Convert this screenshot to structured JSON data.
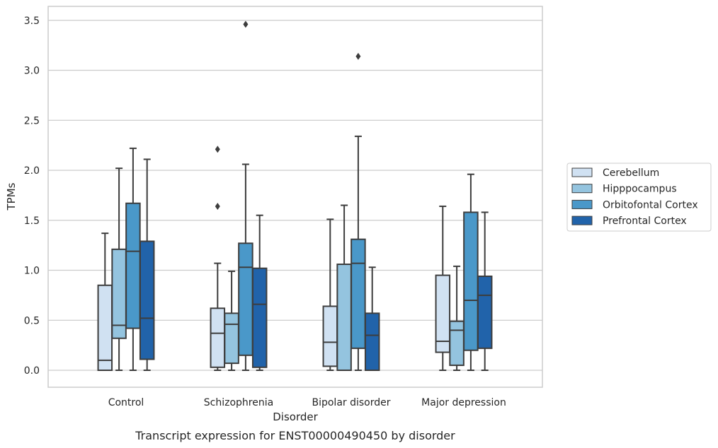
{
  "chart_data": {
    "type": "box",
    "caption": "Transcript expression for ENST00000490450 by disorder",
    "xlabel": "Disorder",
    "ylabel": "TPMs",
    "ylim": [
      -0.17,
      3.65
    ],
    "yticks": [
      "0.0",
      "0.5",
      "1.0",
      "1.5",
      "2.0",
      "2.5",
      "3.0",
      "3.5"
    ],
    "grid": "horizontal",
    "legend_position": "right",
    "categories": [
      "Control",
      "Schizophrenia",
      "Bipolar disorder",
      "Major depression"
    ],
    "series": [
      {
        "name": "Cerebellum",
        "color": "#d0e1f2",
        "boxes": [
          {
            "category": "Control",
            "whisker_low": 0.0,
            "q1": 0.0,
            "median": 0.1,
            "q3": 0.85,
            "whisker_high": 1.37,
            "outliers": []
          },
          {
            "category": "Schizophrenia",
            "whisker_low": 0.0,
            "q1": 0.03,
            "median": 0.37,
            "q3": 0.62,
            "whisker_high": 1.07,
            "outliers": [
              1.64,
              2.21
            ]
          },
          {
            "category": "Bipolar disorder",
            "whisker_low": 0.0,
            "q1": 0.04,
            "median": 0.28,
            "q3": 0.64,
            "whisker_high": 1.51,
            "outliers": []
          },
          {
            "category": "Major depression",
            "whisker_low": 0.0,
            "q1": 0.18,
            "median": 0.29,
            "q3": 0.95,
            "whisker_high": 1.64,
            "outliers": []
          }
        ]
      },
      {
        "name": "Hipppocampus",
        "color": "#94c4df",
        "boxes": [
          {
            "category": "Control",
            "whisker_low": 0.0,
            "q1": 0.32,
            "median": 0.45,
            "q3": 1.21,
            "whisker_high": 2.02,
            "outliers": []
          },
          {
            "category": "Schizophrenia",
            "whisker_low": 0.0,
            "q1": 0.07,
            "median": 0.46,
            "q3": 0.57,
            "whisker_high": 0.99,
            "outliers": []
          },
          {
            "category": "Bipolar disorder",
            "whisker_low": 0.0,
            "q1": 0.0,
            "median": 0.0,
            "q3": 1.06,
            "whisker_high": 1.65,
            "outliers": []
          },
          {
            "category": "Major depression",
            "whisker_low": 0.0,
            "q1": 0.05,
            "median": 0.4,
            "q3": 0.49,
            "whisker_high": 1.04,
            "outliers": []
          }
        ]
      },
      {
        "name": "Orbitofontal Cortex",
        "color": "#4a98c9",
        "boxes": [
          {
            "category": "Control",
            "whisker_low": 0.0,
            "q1": 0.42,
            "median": 1.19,
            "q3": 1.67,
            "whisker_high": 2.22,
            "outliers": []
          },
          {
            "category": "Schizophrenia",
            "whisker_low": 0.0,
            "q1": 0.15,
            "median": 1.03,
            "q3": 1.27,
            "whisker_high": 2.06,
            "outliers": [
              3.46
            ]
          },
          {
            "category": "Bipolar disorder",
            "whisker_low": 0.0,
            "q1": 0.22,
            "median": 1.07,
            "q3": 1.31,
            "whisker_high": 2.34,
            "outliers": [
              3.14
            ]
          },
          {
            "category": "Major depression",
            "whisker_low": 0.0,
            "q1": 0.2,
            "median": 0.7,
            "q3": 1.58,
            "whisker_high": 1.96,
            "outliers": []
          }
        ]
      },
      {
        "name": "Prefrontal Cortex",
        "color": "#2163aa",
        "boxes": [
          {
            "category": "Control",
            "whisker_low": 0.0,
            "q1": 0.11,
            "median": 0.52,
            "q3": 1.29,
            "whisker_high": 2.11,
            "outliers": []
          },
          {
            "category": "Schizophrenia",
            "whisker_low": 0.0,
            "q1": 0.03,
            "median": 0.66,
            "q3": 1.02,
            "whisker_high": 1.55,
            "outliers": []
          },
          {
            "category": "Bipolar disorder",
            "whisker_low": 0.0,
            "q1": 0.0,
            "median": 0.35,
            "q3": 0.57,
            "whisker_high": 1.03,
            "outliers": []
          },
          {
            "category": "Major depression",
            "whisker_low": 0.0,
            "q1": 0.22,
            "median": 0.75,
            "q3": 0.94,
            "whisker_high": 1.58,
            "outliers": []
          }
        ]
      }
    ]
  }
}
